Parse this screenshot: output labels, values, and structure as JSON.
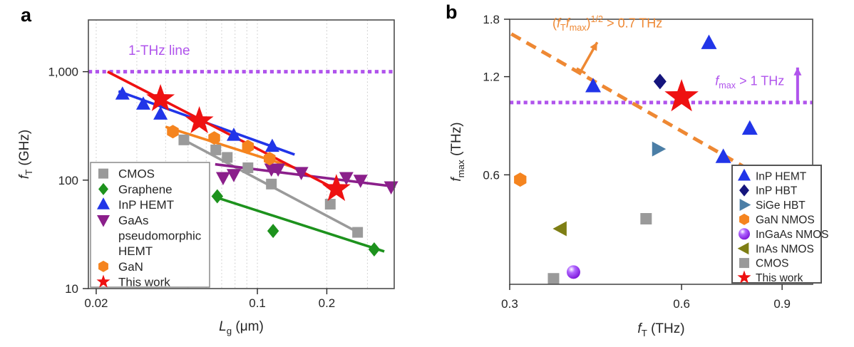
{
  "figure": {
    "background": "#ffffff",
    "text_color": "#262626",
    "axis_color": "#4d4d4d",
    "grid_color": "#c9c9c9"
  },
  "chart_data": [
    {
      "type": "scatter",
      "panel_label": "a",
      "xscale": "log",
      "yscale": "log",
      "xlim": [
        0.0185,
        0.392
      ],
      "ylim": [
        10,
        3000
      ],
      "xlabel_parts": [
        {
          "t": "L",
          "i": true
        },
        {
          "t": "g",
          "sub": true
        },
        {
          "t": " (μm)"
        }
      ],
      "ylabel_parts": [
        {
          "t": "f",
          "i": true
        },
        {
          "t": "T",
          "sub": true
        },
        {
          "t": " (GHz)"
        }
      ],
      "xticks": [
        {
          "v": 0.02,
          "label": "0.02"
        },
        {
          "v": 0.1,
          "label": "0.1"
        },
        {
          "v": 0.2,
          "label": "0.2"
        }
      ],
      "yticks": [
        {
          "v": 10,
          "label": "10"
        },
        {
          "v": 100,
          "label": "100"
        },
        {
          "v": 1000,
          "label": "1,000"
        }
      ],
      "minor_gridlines_x": [
        0.02,
        0.03,
        0.04,
        0.05,
        0.06,
        0.07,
        0.08,
        0.09,
        0.1,
        0.2,
        0.3
      ],
      "hline": {
        "y": 1000,
        "color": "#b054ec",
        "label_parts": [
          {
            "t": "1-THz line"
          }
        ],
        "label_anchor": {
          "x": 0.0375,
          "y": 1430
        }
      },
      "legend_position": "bottom-left",
      "series": [
        {
          "name": "CMOS",
          "legend_lines": [
            "CMOS"
          ],
          "marker": "square",
          "color": "#9a9a9a",
          "trend": [
            [
              0.0485,
              232
            ],
            [
              0.273,
              33
            ]
          ],
          "points": [
            [
              0.048,
              235
            ],
            [
              0.066,
              190
            ],
            [
              0.074,
              162
            ],
            [
              0.091,
              130
            ],
            [
              0.115,
              92
            ],
            [
              0.207,
              60
            ],
            [
              0.272,
              33
            ]
          ]
        },
        {
          "name": "Graphene",
          "legend_lines": [
            "Graphene"
          ],
          "marker": "diamond",
          "color": "#1d921d",
          "trend": [
            [
              0.0667,
              69
            ],
            [
              0.355,
              22
            ]
          ],
          "points": [
            [
              0.067,
              71
            ],
            [
              0.117,
              34
            ],
            [
              0.321,
              23
            ]
          ]
        },
        {
          "name": "InP HEMT",
          "legend_lines": [
            "InP HEMT"
          ],
          "marker": "triangle-up",
          "color": "#2135e8",
          "trend": [
            [
              0.025,
              660
            ],
            [
              0.145,
              172
            ]
          ],
          "points": [
            [
              0.026,
              620
            ],
            [
              0.032,
              500
            ],
            [
              0.038,
              405
            ],
            [
              0.079,
              258
            ],
            [
              0.116,
              204
            ]
          ]
        },
        {
          "name": "GaAs pseudomorphic HEMT",
          "legend_lines": [
            "GaAs",
            "pseudomorphic",
            "HEMT"
          ],
          "marker": "triangle-down",
          "color": "#8b1f8b",
          "trend": [
            [
              0.0656,
              140
            ],
            [
              0.397,
              87
            ]
          ],
          "points": [
            [
              0.071,
              106
            ],
            [
              0.079,
              113
            ],
            [
              0.115,
              127
            ],
            [
              0.123,
              127
            ],
            [
              0.155,
              118
            ],
            [
              0.243,
              106
            ],
            [
              0.28,
              100
            ],
            [
              0.38,
              87
            ]
          ]
        },
        {
          "name": "GaN",
          "legend_lines": [
            "GaN"
          ],
          "marker": "hexagon",
          "color": "#f5841f",
          "trend": [
            [
              0.04,
              310
            ],
            [
              0.16,
              122
            ]
          ],
          "points": [
            [
              0.043,
              280
            ],
            [
              0.065,
              245
            ],
            [
              0.091,
              204
            ],
            [
              0.113,
              158
            ]
          ]
        },
        {
          "name": "This work",
          "legend_lines": [
            "This work"
          ],
          "marker": "star",
          "color": "#ee1111",
          "trend": [
            [
              0.0224,
              1000
            ],
            [
              0.225,
              80
            ]
          ],
          "points": [
            [
              0.038,
              560
            ],
            [
              0.056,
              350
            ],
            [
              0.22,
              83
            ]
          ]
        }
      ]
    },
    {
      "type": "scatter",
      "panel_label": "b",
      "xscale": "log",
      "yscale": "log",
      "xlim": [
        0.3,
        1.018
      ],
      "ylim": [
        0.277,
        1.8
      ],
      "xlabel_parts": [
        {
          "t": "f",
          "i": true
        },
        {
          "t": "T",
          "sub": true
        },
        {
          "t": " (THz)"
        }
      ],
      "ylabel_parts": [
        {
          "t": "f",
          "i": true
        },
        {
          "t": "max",
          "sub": true
        },
        {
          "t": " (THz)"
        }
      ],
      "xticks": [
        {
          "v": 0.3,
          "label": "0.3"
        },
        {
          "v": 0.6,
          "label": "0.6"
        },
        {
          "v": 0.9,
          "label": "0.9"
        }
      ],
      "yticks": [
        {
          "v": 0.6,
          "label": "0.6"
        },
        {
          "v": 1.2,
          "label": "1.2"
        },
        {
          "v": 1.8,
          "label": "1.8"
        }
      ],
      "minor_gridlines_x": [],
      "hline": {
        "y": 1.0,
        "color": "#b054ec",
        "label_parts": [
          {
            "t": "f",
            "i": true
          },
          {
            "t": "max",
            "sub": true
          },
          {
            "t": " > 1 THz"
          }
        ],
        "label_anchor": {
          "x": 0.79,
          "y": 1.13
        },
        "arrow": {
          "x": 0.958,
          "y_from": 1.005,
          "y_to": 1.28
        }
      },
      "diag": {
        "k": 0.49,
        "x_from": 0.302,
        "x_to": 0.8,
        "color": "#ee8833",
        "label_parts": [
          {
            "t": "("
          },
          {
            "t": "f",
            "i": true
          },
          {
            "t": "T",
            "sub": true
          },
          {
            "t": "f",
            "i": true
          },
          {
            "t": "max",
            "sub": true
          },
          {
            "t": ")"
          },
          {
            "t": "1/2",
            "sup": true
          },
          {
            "t": " > 0.7 THz"
          }
        ],
        "label_anchor": {
          "x": 0.445,
          "y": 1.7
        },
        "arrow": {
          "from": [
            0.4,
            1.25
          ],
          "to": [
            0.427,
            1.53
          ]
        }
      },
      "legend_position": "bottom-right",
      "series": [
        {
          "name": "InP HEMT",
          "legend_lines": [
            "InP HEMT"
          ],
          "marker": "triangle-up",
          "color": "#2135e8",
          "points": [
            [
              0.42,
              1.12
            ],
            [
              0.67,
              1.52
            ],
            [
              0.79,
              0.83
            ],
            [
              0.71,
              0.68
            ]
          ]
        },
        {
          "name": "InP HBT",
          "legend_lines": [
            "InP HBT"
          ],
          "marker": "diamond",
          "color": "#15157d",
          "points": [
            [
              0.55,
              1.16
            ]
          ]
        },
        {
          "name": "SiGe HBT",
          "legend_lines": [
            "SiGe HBT"
          ],
          "marker": "triangle-right",
          "color": "#4b7ea6",
          "points": [
            [
              0.545,
              0.72
            ]
          ]
        },
        {
          "name": "GaN NMOS",
          "legend_lines": [
            "GaN NMOS"
          ],
          "marker": "hexagon",
          "color": "#f5841f",
          "points": [
            [
              0.313,
              0.58
            ]
          ]
        },
        {
          "name": "InGaAs NMOS",
          "legend_lines": [
            "InGaAs NMOS"
          ],
          "marker": "sphere",
          "color": "#8c1aee",
          "highlight": "#ffffff",
          "points": [
            [
              0.388,
              0.302
            ]
          ]
        },
        {
          "name": "InAs NMOS",
          "legend_lines": [
            "InAs NMOS"
          ],
          "marker": "triangle-left",
          "color": "#7e7e14",
          "points": [
            [
              0.369,
              0.41
            ]
          ]
        },
        {
          "name": "CMOS",
          "legend_lines": [
            "CMOS"
          ],
          "marker": "square",
          "color": "#9a9a9a",
          "points": [
            [
              0.52,
              0.44
            ],
            [
              0.358,
              0.288
            ]
          ]
        },
        {
          "name": "This work",
          "legend_lines": [
            "This work"
          ],
          "marker": "star",
          "color": "#ee1111",
          "points": [
            [
              0.6,
              1.04
            ]
          ]
        }
      ]
    }
  ]
}
